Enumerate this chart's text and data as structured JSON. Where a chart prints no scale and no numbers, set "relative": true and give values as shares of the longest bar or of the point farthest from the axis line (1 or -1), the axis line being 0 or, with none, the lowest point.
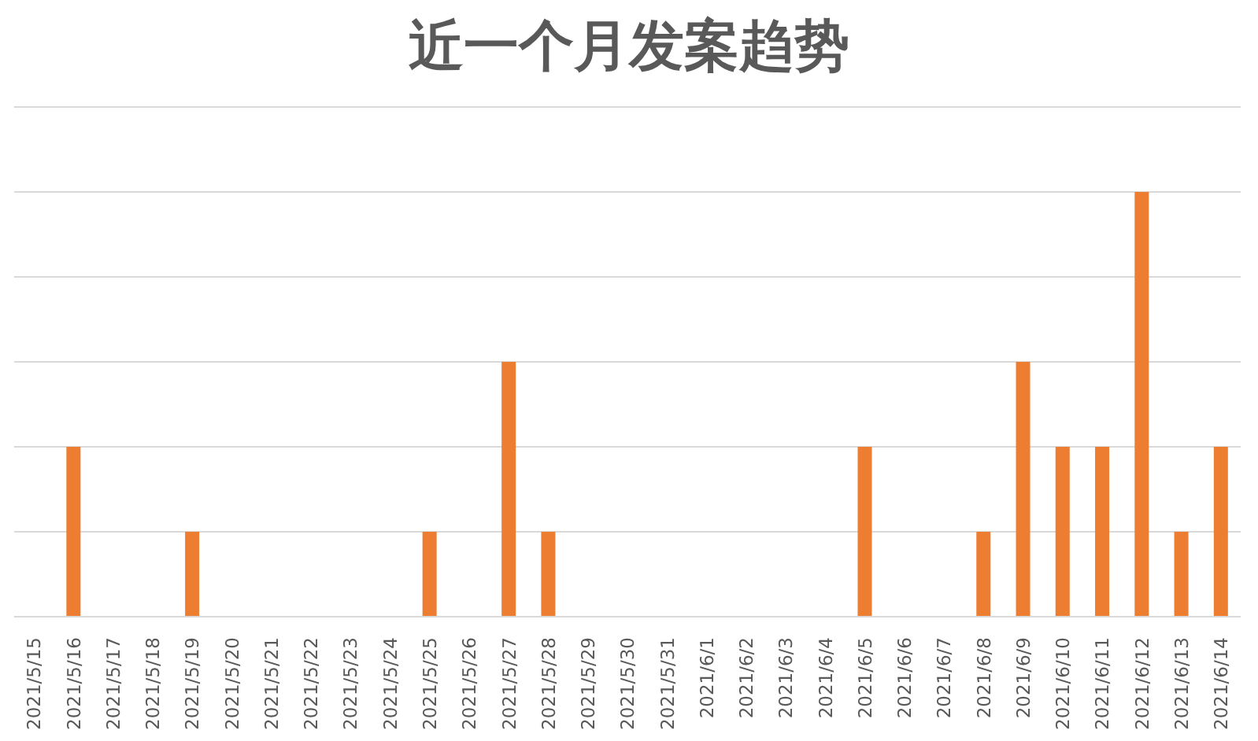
{
  "chart_data": {
    "type": "bar",
    "title": "近一个月发案趋势",
    "categories": [
      "2021/5/15",
      "2021/5/16",
      "2021/5/17",
      "2021/5/18",
      "2021/5/19",
      "2021/5/20",
      "2021/5/21",
      "2021/5/22",
      "2021/5/23",
      "2021/5/24",
      "2021/5/25",
      "2021/5/26",
      "2021/5/27",
      "2021/5/28",
      "2021/5/29",
      "2021/5/30",
      "2021/5/31",
      "2021/6/1",
      "2021/6/2",
      "2021/6/3",
      "2021/6/4",
      "2021/6/5",
      "2021/6/6",
      "2021/6/7",
      "2021/6/8",
      "2021/6/9",
      "2021/6/10",
      "2021/6/11",
      "2021/6/12",
      "2021/6/13",
      "2021/6/14"
    ],
    "values": [
      0,
      0.4,
      0,
      0,
      0.2,
      0,
      0,
      0,
      0,
      0,
      0.2,
      0,
      0.6,
      0.2,
      0,
      0,
      0,
      0,
      0,
      0,
      0,
      0.4,
      0,
      0,
      0.2,
      0.6,
      0.4,
      0.4,
      1,
      0.2,
      0.4
    ],
    "color": "#ed7d31",
    "relative": true,
    "grid": "y"
  }
}
